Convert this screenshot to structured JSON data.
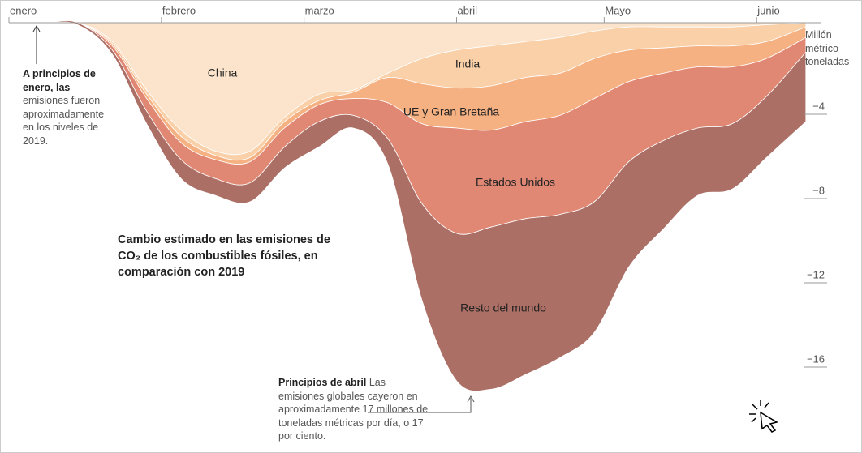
{
  "chart_data": {
    "type": "stacked_area",
    "title": "Cambio estimado en las emisiones de CO₂ de los combustibles fósiles, en comparación con 2019",
    "y_label": "Millón métrico toneladas",
    "annotations": [
      {
        "bold": "A principios de enero, las",
        "text": "emisiones fueron aproximadamente en los niveles de 2019."
      },
      {
        "bold": "Principios de abril",
        "text": "Las emisiones globales cayeron en aproximadamente 17 millones de toneladas métricas por día, o 17 por ciento."
      }
    ],
    "x": [
      0,
      7,
      14,
      21,
      28,
      35,
      42,
      49,
      56,
      63,
      70,
      77,
      84,
      91,
      98,
      105,
      112,
      119,
      126,
      133,
      140,
      147,
      154,
      162
    ],
    "xlim": [
      0,
      165
    ],
    "xticks": [
      {
        "value": 0,
        "label": "enero"
      },
      {
        "value": 31,
        "label": "febrero"
      },
      {
        "value": 60,
        "label": "marzo"
      },
      {
        "value": 91,
        "label": "abril"
      },
      {
        "value": 121,
        "label": "Mayo"
      },
      {
        "value": 152,
        "label": "junio"
      }
    ],
    "ylim": [
      0,
      -17.5
    ],
    "yticks": [
      {
        "value": -4,
        "label": "−4"
      },
      {
        "value": -8,
        "label": "−8"
      },
      {
        "value": -12,
        "label": "−12"
      },
      {
        "value": -16,
        "label": "−16"
      }
    ],
    "series": [
      {
        "name": "China",
        "color": "#fbe4cb",
        "values": [
          0,
          0,
          0,
          -0.9,
          -3.2,
          -5.1,
          -6.1,
          -6.1,
          -4.5,
          -3.4,
          -3.2,
          -2.4,
          -1.7,
          -1.3,
          -1.1,
          -0.9,
          -0.7,
          -0.4,
          -0.2,
          -0.2,
          -0.2,
          -0.2,
          -0.1,
          0
        ]
      },
      {
        "name": "India",
        "color": "#f9d0a8",
        "values": [
          0,
          0,
          0,
          -0.1,
          -0.2,
          -0.3,
          -0.2,
          -0.3,
          -0.2,
          -0.3,
          -0.1,
          -0.2,
          -1.2,
          -1.8,
          -1.9,
          -1.7,
          -1.7,
          -1.3,
          -1.1,
          -1.0,
          -0.9,
          -0.9,
          -0.8,
          -0.2
        ]
      },
      {
        "name": "UE y Gran Bretaña",
        "color": "#f5b182",
        "values": [
          0,
          0,
          0,
          -0.1,
          -0.2,
          -0.3,
          -0.2,
          -0.2,
          -0.3,
          -0.2,
          -0.3,
          -1.2,
          -1.9,
          -1.9,
          -2.1,
          -2.1,
          -2.0,
          -1.9,
          -1.5,
          -1.2,
          -1.0,
          -1.0,
          -0.8,
          -0.5
        ]
      },
      {
        "name": "Estados Unidos",
        "color": "#e18874",
        "values": [
          0,
          0,
          0,
          -0.2,
          -0.6,
          -0.8,
          -0.9,
          -1.0,
          -0.9,
          -0.8,
          -0.8,
          -1.7,
          -3.8,
          -5.0,
          -4.6,
          -4.6,
          -4.7,
          -4.9,
          -3.8,
          -3.2,
          -2.9,
          -2.7,
          -1.8,
          -0.7
        ]
      },
      {
        "name": "Resto del mundo",
        "color": "#ab6f65",
        "values": [
          0,
          0,
          -0.1,
          -0.2,
          -0.6,
          -0.9,
          -0.8,
          -0.9,
          -1.0,
          -1.2,
          -0.6,
          -1.2,
          -4.6,
          -7.0,
          -7.7,
          -7.4,
          -6.8,
          -6.2,
          -5.0,
          -4.2,
          -3.2,
          -3.1,
          -2.9,
          -3.3
        ]
      }
    ]
  }
}
